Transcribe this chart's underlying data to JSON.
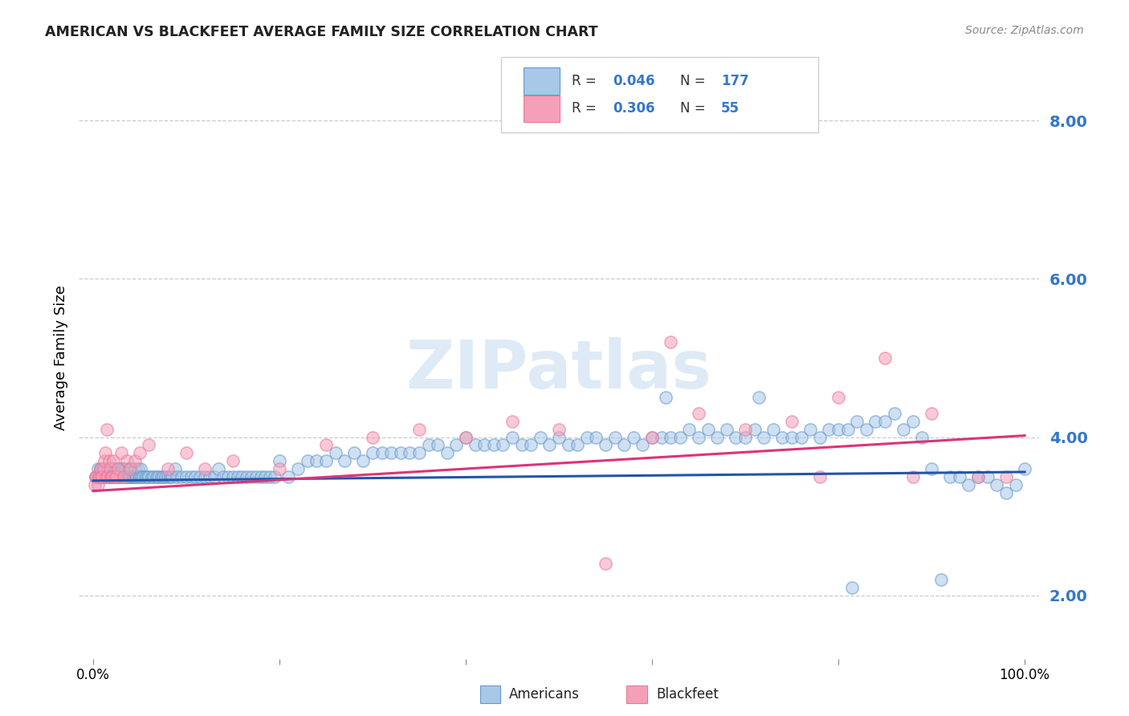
{
  "title": "AMERICAN VS BLACKFEET AVERAGE FAMILY SIZE CORRELATION CHART",
  "source": "Source: ZipAtlas.com",
  "ylabel": "Average Family Size",
  "right_yticks": [
    2.0,
    4.0,
    6.0,
    8.0
  ],
  "watermark": "ZIPatlas",
  "blue_color": "#a8c8e8",
  "pink_color": "#f4a0b8",
  "blue_edge_color": "#6699cc",
  "pink_edge_color": "#ee7799",
  "blue_line_color": "#2255aa",
  "pink_line_color": "#dd3377",
  "right_tick_color": "#3377cc",
  "blue_scatter_x": [
    0.003,
    0.004,
    0.005,
    0.006,
    0.007,
    0.008,
    0.009,
    0.01,
    0.011,
    0.012,
    0.013,
    0.014,
    0.015,
    0.016,
    0.017,
    0.018,
    0.019,
    0.02,
    0.021,
    0.022,
    0.023,
    0.024,
    0.025,
    0.026,
    0.027,
    0.028,
    0.029,
    0.03,
    0.031,
    0.032,
    0.033,
    0.034,
    0.035,
    0.036,
    0.037,
    0.038,
    0.039,
    0.04,
    0.041,
    0.042,
    0.043,
    0.044,
    0.045,
    0.046,
    0.047,
    0.048,
    0.049,
    0.05,
    0.051,
    0.052,
    0.054,
    0.056,
    0.058,
    0.06,
    0.063,
    0.065,
    0.068,
    0.07,
    0.073,
    0.075,
    0.078,
    0.08,
    0.083,
    0.085,
    0.088,
    0.09,
    0.095,
    0.1,
    0.105,
    0.11,
    0.115,
    0.12,
    0.125,
    0.13,
    0.135,
    0.14,
    0.145,
    0.15,
    0.155,
    0.16,
    0.165,
    0.17,
    0.175,
    0.18,
    0.185,
    0.19,
    0.195,
    0.2,
    0.21,
    0.22,
    0.23,
    0.24,
    0.25,
    0.26,
    0.27,
    0.28,
    0.29,
    0.3,
    0.31,
    0.32,
    0.33,
    0.34,
    0.35,
    0.36,
    0.37,
    0.38,
    0.39,
    0.4,
    0.41,
    0.42,
    0.43,
    0.44,
    0.45,
    0.46,
    0.47,
    0.48,
    0.49,
    0.5,
    0.51,
    0.52,
    0.53,
    0.54,
    0.55,
    0.56,
    0.57,
    0.58,
    0.59,
    0.6,
    0.61,
    0.62,
    0.63,
    0.64,
    0.65,
    0.66,
    0.67,
    0.68,
    0.69,
    0.7,
    0.71,
    0.72,
    0.73,
    0.74,
    0.75,
    0.76,
    0.77,
    0.78,
    0.79,
    0.8,
    0.81,
    0.82,
    0.83,
    0.84,
    0.85,
    0.86,
    0.87,
    0.88,
    0.89,
    0.9,
    0.91,
    0.92,
    0.93,
    0.94,
    0.95,
    0.96,
    0.97,
    0.98,
    0.99,
    1.0,
    0.615,
    0.715,
    0.815
  ],
  "blue_scatter_y": [
    3.5,
    3.5,
    3.6,
    3.5,
    3.5,
    3.6,
    3.5,
    3.6,
    3.5,
    3.5,
    3.6,
    3.5,
    3.5,
    3.6,
    3.5,
    3.5,
    3.6,
    3.5,
    3.6,
    3.5,
    3.6,
    3.5,
    3.6,
    3.5,
    3.5,
    3.6,
    3.5,
    3.6,
    3.5,
    3.6,
    3.5,
    3.5,
    3.6,
    3.5,
    3.5,
    3.6,
    3.5,
    3.5,
    3.6,
    3.5,
    3.5,
    3.5,
    3.6,
    3.5,
    3.5,
    3.6,
    3.5,
    3.5,
    3.6,
    3.5,
    3.5,
    3.5,
    3.5,
    3.5,
    3.5,
    3.5,
    3.5,
    3.5,
    3.5,
    3.5,
    3.5,
    3.5,
    3.5,
    3.5,
    3.6,
    3.5,
    3.5,
    3.5,
    3.5,
    3.5,
    3.5,
    3.5,
    3.5,
    3.5,
    3.6,
    3.5,
    3.5,
    3.5,
    3.5,
    3.5,
    3.5,
    3.5,
    3.5,
    3.5,
    3.5,
    3.5,
    3.5,
    3.7,
    3.5,
    3.6,
    3.7,
    3.7,
    3.7,
    3.8,
    3.7,
    3.8,
    3.7,
    3.8,
    3.8,
    3.8,
    3.8,
    3.8,
    3.8,
    3.9,
    3.9,
    3.8,
    3.9,
    4.0,
    3.9,
    3.9,
    3.9,
    3.9,
    4.0,
    3.9,
    3.9,
    4.0,
    3.9,
    4.0,
    3.9,
    3.9,
    4.0,
    4.0,
    3.9,
    4.0,
    3.9,
    4.0,
    3.9,
    4.0,
    4.0,
    4.0,
    4.0,
    4.1,
    4.0,
    4.1,
    4.0,
    4.1,
    4.0,
    4.0,
    4.1,
    4.0,
    4.1,
    4.0,
    4.0,
    4.0,
    4.1,
    4.0,
    4.1,
    4.1,
    4.1,
    4.2,
    4.1,
    4.2,
    4.2,
    4.3,
    4.1,
    4.2,
    4.0,
    3.6,
    2.2,
    3.5,
    3.5,
    3.4,
    3.5,
    3.5,
    3.4,
    3.3,
    3.4,
    3.6,
    4.5,
    4.5,
    2.1
  ],
  "pink_scatter_x": [
    0.002,
    0.003,
    0.004,
    0.005,
    0.006,
    0.007,
    0.008,
    0.009,
    0.01,
    0.011,
    0.012,
    0.013,
    0.014,
    0.015,
    0.016,
    0.017,
    0.018,
    0.019,
    0.02,
    0.021,
    0.022,
    0.023,
    0.025,
    0.027,
    0.03,
    0.033,
    0.036,
    0.04,
    0.045,
    0.05,
    0.06,
    0.08,
    0.1,
    0.12,
    0.15,
    0.2,
    0.25,
    0.3,
    0.35,
    0.4,
    0.45,
    0.5,
    0.55,
    0.6,
    0.65,
    0.7,
    0.75,
    0.8,
    0.85,
    0.9,
    0.95,
    0.62,
    0.78,
    0.88,
    0.98
  ],
  "pink_scatter_y": [
    3.4,
    3.5,
    3.5,
    3.4,
    3.5,
    3.5,
    3.6,
    3.5,
    3.5,
    3.6,
    3.7,
    3.8,
    3.5,
    4.1,
    3.5,
    3.7,
    3.6,
    3.5,
    3.5,
    3.5,
    3.7,
    3.5,
    3.5,
    3.6,
    3.8,
    3.5,
    3.7,
    3.6,
    3.7,
    3.8,
    3.9,
    3.6,
    3.8,
    3.6,
    3.7,
    3.6,
    3.9,
    4.0,
    4.1,
    4.0,
    4.2,
    4.1,
    2.4,
    4.0,
    4.3,
    4.1,
    4.2,
    4.5,
    5.0,
    4.3,
    3.5,
    5.2,
    3.5,
    3.5,
    3.5
  ],
  "blue_trend_x": [
    0.0,
    1.0
  ],
  "blue_trend_y": [
    3.45,
    3.56
  ],
  "pink_trend_x": [
    0.0,
    1.0
  ],
  "pink_trend_y": [
    3.32,
    4.02
  ],
  "ylim": [
    1.2,
    8.8
  ],
  "xlim": [
    -0.015,
    1.015
  ],
  "figsize": [
    14.06,
    8.92
  ],
  "dpi": 100,
  "scatter_size": 120,
  "scatter_alpha": 0.55,
  "scatter_linewidth": 1.2
}
